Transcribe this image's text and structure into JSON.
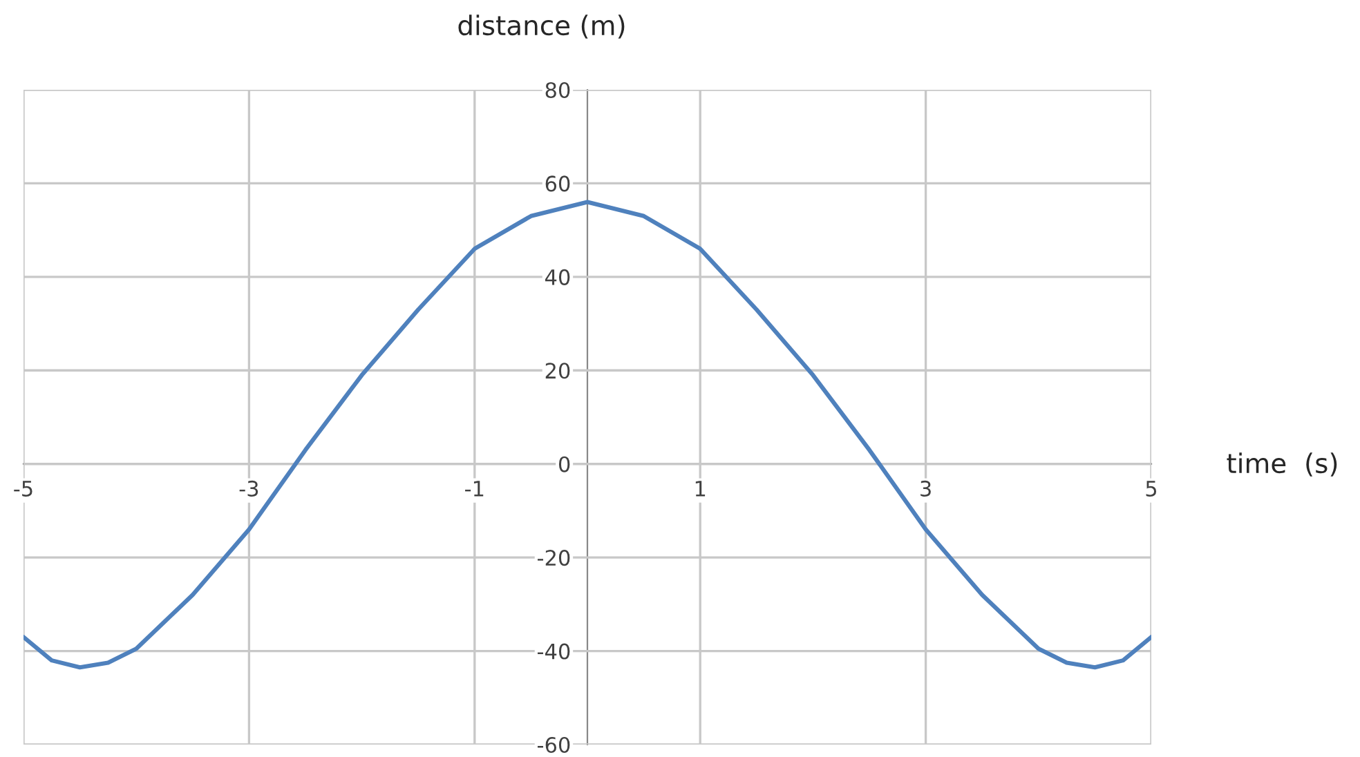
{
  "chart_data": {
    "type": "line",
    "xlabel": "time  (s)",
    "ylabel": "distance (m)",
    "x": [
      -5,
      -4.75,
      -4.5,
      -4.25,
      -4,
      -3.5,
      -3,
      -2.5,
      -2,
      -1.5,
      -1,
      -0.5,
      0,
      0.5,
      1,
      1.5,
      2,
      2.5,
      3,
      3.5,
      4,
      4.25,
      4.5,
      4.75,
      5
    ],
    "series": [
      {
        "color": "#4f81bd",
        "values": [
          -37,
          -42,
          -43.5,
          -42.5,
          -39.5,
          -28,
          -14,
          3,
          19,
          33,
          46,
          53,
          56,
          53,
          46,
          33,
          19,
          3,
          -14,
          -28,
          -39.5,
          -42.5,
          -43.5,
          -42,
          -37
        ]
      }
    ],
    "xlim": [
      -5,
      5
    ],
    "xticks": [
      -5,
      -3,
      -1,
      1,
      3,
      5
    ],
    "ylim": [
      -60,
      80
    ],
    "yticks": [
      -60,
      -40,
      -20,
      0,
      20,
      40,
      60,
      80
    ],
    "grid": true,
    "marker": "none",
    "line_style": "solid"
  }
}
